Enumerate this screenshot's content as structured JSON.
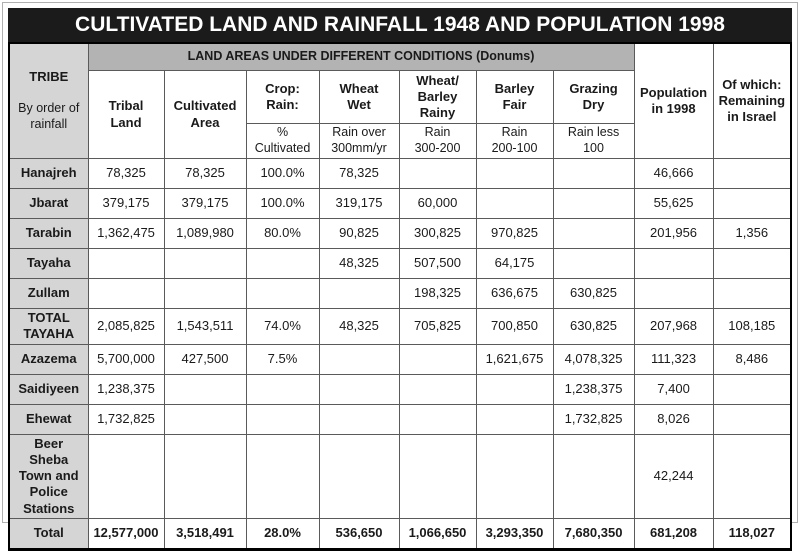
{
  "title": "CULTIVATED LAND AND RAINFALL 1948 AND POPULATION 1998",
  "colors": {
    "title_bg": "#1b1b1b",
    "title_text": "#ffffff",
    "band_bg": "#b3b3b3",
    "row_label_bg": "#d5d5d5",
    "border": "#5a5a5a"
  },
  "table": {
    "tribe_header": {
      "title": "TRIBE",
      "subtitle": "By order of\nrainfall"
    },
    "band_header": "LAND AREAS UNDER DIFFERENT CONDITIONS (Donums)",
    "columns": [
      {
        "label": "Tribal Land",
        "sub": null
      },
      {
        "label": "Cultivated\nArea",
        "sub": null
      },
      {
        "label": "Crop:\nRain:",
        "sub": "%\nCultivated"
      },
      {
        "label": "Wheat\nWet",
        "sub": "Rain over\n300mm/yr"
      },
      {
        "label": "Wheat/\nBarley\nRainy",
        "sub": "Rain\n300-200"
      },
      {
        "label": "Barley\nFair",
        "sub": "Rain\n200-100"
      },
      {
        "label": "Grazing\nDry",
        "sub": "Rain less\n100"
      }
    ],
    "population_header": "Population\nin 1998",
    "remaining_header": "Of which:\nRemaining\nin Israel",
    "rows": [
      {
        "tribe": "Hanajreh",
        "bold": false,
        "cells": [
          "78,325",
          "78,325",
          "100.0%",
          "78,325",
          "",
          "",
          "",
          "46,666",
          ""
        ]
      },
      {
        "tribe": "Jbarat",
        "bold": false,
        "cells": [
          "379,175",
          "379,175",
          "100.0%",
          "319,175",
          "60,000",
          "",
          "",
          "55,625",
          ""
        ]
      },
      {
        "tribe": "Tarabin",
        "bold": false,
        "cells": [
          "1,362,475",
          "1,089,980",
          "80.0%",
          "90,825",
          "300,825",
          "970,825",
          "",
          "201,956",
          "1,356"
        ]
      },
      {
        "tribe": "Tayaha",
        "bold": false,
        "cells": [
          "",
          "",
          "",
          "48,325",
          "507,500",
          "64,175",
          "",
          "",
          ""
        ]
      },
      {
        "tribe": "Zullam",
        "bold": false,
        "cells": [
          "",
          "",
          "",
          "",
          "198,325",
          "636,675",
          "630,825",
          "",
          ""
        ]
      },
      {
        "tribe": "TOTAL\nTAYAHA",
        "bold": false,
        "cells": [
          "2,085,825",
          "1,543,511",
          "74.0%",
          "48,325",
          "705,825",
          "700,850",
          "630,825",
          "207,968",
          "108,185"
        ]
      },
      {
        "tribe": "Azazema",
        "bold": false,
        "cells": [
          "5,700,000",
          "427,500",
          "7.5%",
          "",
          "",
          "1,621,675",
          "4,078,325",
          "111,323",
          "8,486"
        ]
      },
      {
        "tribe": "Saidiyeen",
        "bold": false,
        "cells": [
          "1,238,375",
          "",
          "",
          "",
          "",
          "",
          "1,238,375",
          "7,400",
          ""
        ]
      },
      {
        "tribe": "Ehewat",
        "bold": false,
        "cells": [
          "1,732,825",
          "",
          "",
          "",
          "",
          "",
          "1,732,825",
          "8,026",
          ""
        ]
      },
      {
        "tribe": "Beer Sheba\nTown and\nPolice\nStations",
        "bold": false,
        "cells": [
          "",
          "",
          "",
          "",
          "",
          "",
          "",
          "42,244",
          ""
        ]
      },
      {
        "tribe": "Total",
        "bold": true,
        "cells": [
          "12,577,000",
          "3,518,491",
          "28.0%",
          "536,650",
          "1,066,650",
          "3,293,350",
          "7,680,350",
          "681,208",
          "118,027"
        ]
      }
    ]
  }
}
